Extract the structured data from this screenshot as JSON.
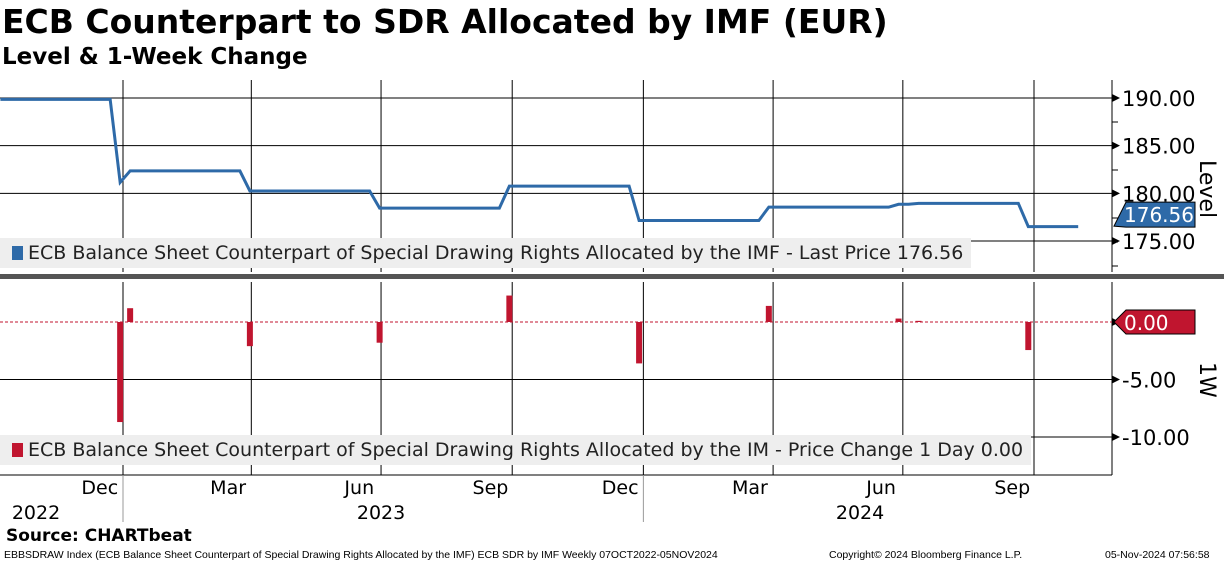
{
  "header": {
    "title": "ECB Counterpart to SDR Allocated by IMF (EUR)",
    "subtitle": "Level & 1-Week Change"
  },
  "colors": {
    "level": "#2e6aa8",
    "change": "#c0152f",
    "divider": "#555555"
  },
  "chart_data": [
    {
      "type": "line",
      "name": "Level",
      "ylabel": "Level",
      "ylim": [
        172,
        192
      ],
      "yticks": [
        "190.00",
        "185.00",
        "180.00",
        "175.00"
      ],
      "ytick_values": [
        190,
        185,
        180,
        175
      ],
      "legend": "ECB Balance Sheet Counterpart of Special Drawing Rights Allocated by the IMF - Last Price 176.56",
      "last_label": "176.56",
      "last_value": 176.56,
      "start_value": 189.85,
      "start_date": "2022-10-07",
      "end_date": "2024-11-01",
      "frequency": "weekly"
    },
    {
      "type": "bar",
      "name": "1W",
      "ylabel": "1W",
      "ylim": [
        -13,
        3.5
      ],
      "yticks": [
        "0.00",
        "-5.00",
        "-10.00"
      ],
      "ytick_values": [
        0,
        -5,
        -10
      ],
      "legend": "ECB Balance Sheet Counterpart of Special Drawing Rights Allocated by the IM - Price Change 1 Day 0.00",
      "last_label": "0.00",
      "changes": [
        {
          "date": "2022-12-30",
          "value": -8.7
        },
        {
          "date": "2023-01-06",
          "value": 1.2
        },
        {
          "date": "2023-03-31",
          "value": -2.1
        },
        {
          "date": "2023-06-30",
          "value": -1.8
        },
        {
          "date": "2023-09-29",
          "value": 2.3
        },
        {
          "date": "2023-12-29",
          "value": -3.6
        },
        {
          "date": "2024-03-29",
          "value": 1.4
        },
        {
          "date": "2024-06-28",
          "value": 0.3
        },
        {
          "date": "2024-07-12",
          "value": 0.1
        },
        {
          "date": "2024-09-27",
          "value": -2.44
        }
      ]
    }
  ],
  "xaxis": {
    "months": [
      {
        "label": "Dec",
        "date": "2022-12-01"
      },
      {
        "label": "Mar",
        "date": "2023-03-01"
      },
      {
        "label": "Jun",
        "date": "2023-06-01"
      },
      {
        "label": "Sep",
        "date": "2023-09-01"
      },
      {
        "label": "Dec",
        "date": "2023-12-01"
      },
      {
        "label": "Mar",
        "date": "2024-03-01"
      },
      {
        "label": "Jun",
        "date": "2024-06-01"
      },
      {
        "label": "Sep",
        "date": "2024-09-01"
      }
    ],
    "years": [
      {
        "label": "2022",
        "date": "2022-11-01"
      },
      {
        "label": "2023",
        "date": "2023-07-01"
      },
      {
        "label": "2024",
        "date": "2024-06-01"
      }
    ]
  },
  "footer": {
    "source": "Source: CHARTbeat",
    "ticker": "EBBSDRAW Index (ECB Balance Sheet Counterpart of Special Drawing Rights Allocated by the IMF) ECB SDR by IMF  Weekly 07OCT2022-05NOV2024",
    "copyright": "Copyright© 2024 Bloomberg Finance L.P.",
    "timestamp": "05-Nov-2024 07:56:58"
  }
}
